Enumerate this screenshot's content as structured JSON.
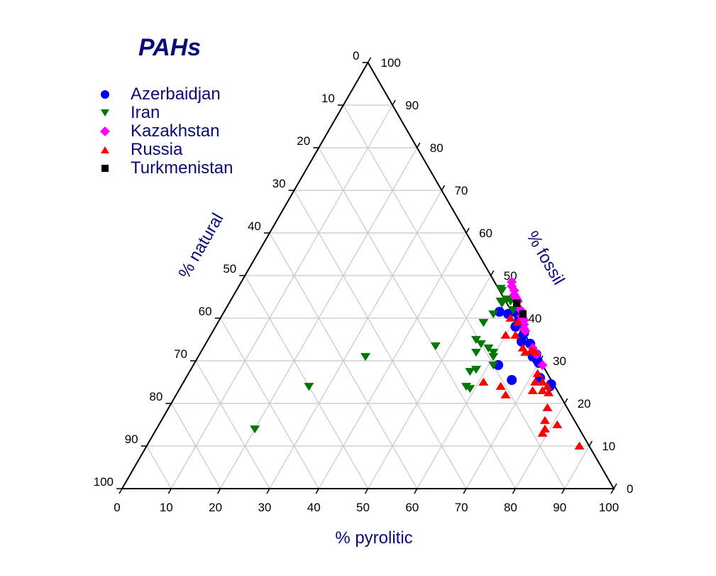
{
  "chart_data": {
    "type": "scatter",
    "subtype": "ternary",
    "title": "PAHs",
    "axes": {
      "bottom": {
        "label": "% pyrolitic",
        "ticks": [
          "0",
          "10",
          "20",
          "30",
          "40",
          "50",
          "60",
          "70",
          "80",
          "90",
          "100"
        ]
      },
      "left": {
        "label": "% natural",
        "ticks": [
          "0",
          "10",
          "20",
          "30",
          "40",
          "50",
          "60",
          "70",
          "80",
          "90",
          "100"
        ]
      },
      "right": {
        "label": "% fossil",
        "ticks": [
          "0",
          "10",
          "20",
          "30",
          "40",
          "50",
          "60",
          "70",
          "80",
          "90",
          "100"
        ]
      }
    },
    "grid": true,
    "legend_position": "top-left",
    "series": [
      {
        "name": "Azerbaidjan",
        "marker": "circle",
        "color": "#0000ff",
        "points": [
          {
            "x": 56,
            "y": 41.5
          },
          {
            "x": 58,
            "y": 41
          },
          {
            "x": 59,
            "y": 41.5
          },
          {
            "x": 61,
            "y": 39.5
          },
          {
            "x": 61,
            "y": 38
          },
          {
            "x": 62,
            "y": 38.5
          },
          {
            "x": 63.5,
            "y": 36.5
          },
          {
            "x": 63.5,
            "y": 35.5
          },
          {
            "x": 64,
            "y": 34.5
          },
          {
            "x": 66,
            "y": 34
          },
          {
            "x": 62,
            "y": 29
          },
          {
            "x": 68,
            "y": 31
          },
          {
            "x": 68.5,
            "y": 31.5
          },
          {
            "x": 69.5,
            "y": 30
          },
          {
            "x": 70,
            "y": 29.5
          },
          {
            "x": 72,
            "y": 26
          },
          {
            "x": 66.5,
            "y": 25.5
          },
          {
            "x": 75,
            "y": 24
          },
          {
            "x": 75,
            "y": 24.5
          }
        ]
      },
      {
        "name": "Iran",
        "marker": "triangle-down",
        "color": "#007700",
        "points": [
          {
            "x": 53.5,
            "y": 47
          },
          {
            "x": 54,
            "y": 46.5
          },
          {
            "x": 55,
            "y": 44
          },
          {
            "x": 55.5,
            "y": 43.5
          },
          {
            "x": 56,
            "y": 44.5
          },
          {
            "x": 57,
            "y": 44
          },
          {
            "x": 58.5,
            "y": 42
          },
          {
            "x": 55,
            "y": 41
          },
          {
            "x": 54,
            "y": 39
          },
          {
            "x": 54.5,
            "y": 35
          },
          {
            "x": 56,
            "y": 34
          },
          {
            "x": 56,
            "y": 32
          },
          {
            "x": 58,
            "y": 33
          },
          {
            "x": 59.5,
            "y": 32
          },
          {
            "x": 60,
            "y": 31
          },
          {
            "x": 47,
            "y": 33.5
          },
          {
            "x": 58,
            "y": 28
          },
          {
            "x": 57,
            "y": 27.5
          },
          {
            "x": 61,
            "y": 29
          },
          {
            "x": 58,
            "y": 24
          },
          {
            "x": 59,
            "y": 23.5
          },
          {
            "x": 34,
            "y": 31
          },
          {
            "x": 26,
            "y": 24
          },
          {
            "x": 20,
            "y": 14
          }
        ]
      },
      {
        "name": "Kazakhstan",
        "marker": "diamond",
        "color": "#ff00ff",
        "points": [
          {
            "x": 55,
            "y": 48.5
          },
          {
            "x": 55.5,
            "y": 47.5
          },
          {
            "x": 56.5,
            "y": 46.5
          },
          {
            "x": 57,
            "y": 45.5
          },
          {
            "x": 57.5,
            "y": 45
          },
          {
            "x": 58,
            "y": 44.5
          },
          {
            "x": 58.5,
            "y": 44
          },
          {
            "x": 60,
            "y": 42
          },
          {
            "x": 61,
            "y": 40.5
          },
          {
            "x": 61.5,
            "y": 40
          },
          {
            "x": 62,
            "y": 39.5
          },
          {
            "x": 62.5,
            "y": 38.5
          },
          {
            "x": 63,
            "y": 37.5
          },
          {
            "x": 63.5,
            "y": 37
          },
          {
            "x": 67,
            "y": 33
          },
          {
            "x": 68,
            "y": 32
          },
          {
            "x": 68.5,
            "y": 31.5
          },
          {
            "x": 71,
            "y": 29
          }
        ]
      },
      {
        "name": "Russia",
        "marker": "triangle-up",
        "color": "#ff0000",
        "points": [
          {
            "x": 59,
            "y": 40
          },
          {
            "x": 61,
            "y": 39
          },
          {
            "x": 60,
            "y": 36
          },
          {
            "x": 62,
            "y": 36
          },
          {
            "x": 65,
            "y": 33
          },
          {
            "x": 66,
            "y": 32
          },
          {
            "x": 67,
            "y": 32.5
          },
          {
            "x": 68,
            "y": 32
          },
          {
            "x": 71,
            "y": 27
          },
          {
            "x": 61,
            "y": 25
          },
          {
            "x": 65,
            "y": 24
          },
          {
            "x": 67,
            "y": 22
          },
          {
            "x": 71.5,
            "y": 25
          },
          {
            "x": 73,
            "y": 25
          },
          {
            "x": 74.5,
            "y": 24
          },
          {
            "x": 72,
            "y": 23
          },
          {
            "x": 74,
            "y": 23
          },
          {
            "x": 75.5,
            "y": 22.5
          },
          {
            "x": 77,
            "y": 19
          },
          {
            "x": 78,
            "y": 16
          },
          {
            "x": 79,
            "y": 14
          },
          {
            "x": 79,
            "y": 13
          },
          {
            "x": 81,
            "y": 15
          },
          {
            "x": 88,
            "y": 10
          }
        ]
      },
      {
        "name": "Turkmenistan",
        "marker": "square",
        "color": "#000000",
        "points": [
          {
            "x": 58.5,
            "y": 43.5
          },
          {
            "x": 61,
            "y": 41
          }
        ]
      }
    ]
  }
}
